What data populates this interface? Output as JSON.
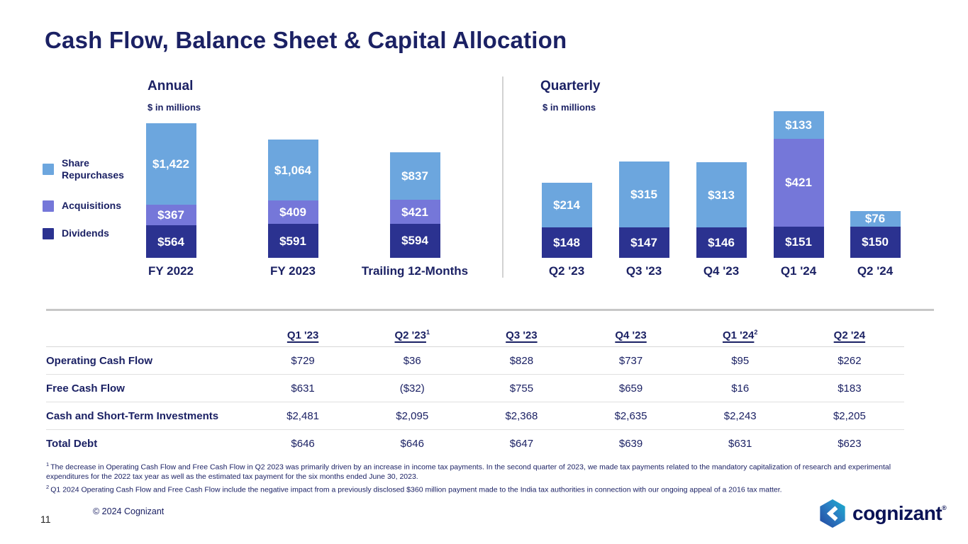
{
  "title": "Cash Flow, Balance Sheet & Capital Allocation",
  "legend": {
    "items": [
      {
        "label": "Share\nRepurchases",
        "color": "#6CA6DE"
      },
      {
        "label": "Acquisitions",
        "color": "#7577D9"
      },
      {
        "label": "Dividends",
        "color": "#2B3290"
      }
    ]
  },
  "chart_data": [
    {
      "type": "bar",
      "stacked": true,
      "title": "Annual",
      "subtitle": "$ in millions",
      "legend_position": "left",
      "categories": [
        "FY 2022",
        "FY 2023",
        "Trailing 12-Months"
      ],
      "series": [
        {
          "name": "Share Repurchases",
          "color": "#6CA6DE",
          "values": [
            1422,
            1064,
            837
          ],
          "labels": [
            "$1,422",
            "$1,064",
            "$837"
          ]
        },
        {
          "name": "Acquisitions",
          "color": "#7577D9",
          "values": [
            367,
            409,
            421
          ],
          "labels": [
            "$367",
            "$409",
            "$421"
          ]
        },
        {
          "name": "Dividends",
          "color": "#2B3290",
          "values": [
            564,
            591,
            594
          ],
          "labels": [
            "$564",
            "$591",
            "$594"
          ]
        }
      ]
    },
    {
      "type": "bar",
      "stacked": true,
      "title": "Quarterly",
      "subtitle": "$ in millions",
      "categories": [
        "Q2 '23",
        "Q3 '23",
        "Q4 '23",
        "Q1 '24",
        "Q2 '24"
      ],
      "series": [
        {
          "name": "Share Repurchases",
          "color": "#6CA6DE",
          "values": [
            214,
            315,
            313,
            133,
            76
          ],
          "labels": [
            "$214",
            "$315",
            "$313",
            "$133",
            "$76"
          ]
        },
        {
          "name": "Acquisitions",
          "color": "#7577D9",
          "values": [
            0,
            0,
            0,
            421,
            0
          ],
          "labels": [
            "",
            "",
            "",
            "$421",
            ""
          ]
        },
        {
          "name": "Dividends",
          "color": "#2B3290",
          "values": [
            148,
            147,
            146,
            151,
            150
          ],
          "labels": [
            "$148",
            "$147",
            "$146",
            "$151",
            "$150"
          ]
        }
      ]
    }
  ],
  "table": {
    "columns": [
      "Q1 '23",
      "Q2 '23",
      "Q3 '23",
      "Q4 '23",
      "Q1 '24",
      "Q2 '24"
    ],
    "column_superscripts": [
      "",
      "1",
      "",
      "",
      "2",
      ""
    ],
    "rows": [
      {
        "label": "Operating Cash Flow",
        "values": [
          "$729",
          "$36",
          "$828",
          "$737",
          "$95",
          "$262"
        ]
      },
      {
        "label": "Free Cash Flow",
        "values": [
          "$631",
          "($32)",
          "$755",
          "$659",
          "$16",
          "$183"
        ]
      },
      {
        "label": "Cash and Short-Term Investments",
        "values": [
          "$2,481",
          "$2,095",
          "$2,368",
          "$2,635",
          "$2,243",
          "$2,205"
        ]
      },
      {
        "label": "Total Debt",
        "values": [
          "$646",
          "$646",
          "$647",
          "$639",
          "$631",
          "$623"
        ]
      }
    ]
  },
  "footnotes": [
    {
      "sup": "1",
      "text": "The decrease in Operating Cash Flow and  Free Cash Flow in Q2 2023 was primarily driven by an increase in income tax payments. In the second quarter of 2023, we made tax payments related to the mandatory capitalization of research and experimental expenditures for the 2022 tax year as well as the estimated tax payment for the six months ended June 30, 2023."
    },
    {
      "sup": "2",
      "text": "Q1 2024 Operating Cash Flow and Free Cash Flow include the negative impact from a previously disclosed $360 million payment made to the India tax authorities in connection with our ongoing appeal of a 2016 tax matter."
    }
  ],
  "footer": {
    "page_number": "11",
    "copyright": "© 2024 Cognizant",
    "logo_text": "cognizant",
    "logo_mark": "®"
  }
}
